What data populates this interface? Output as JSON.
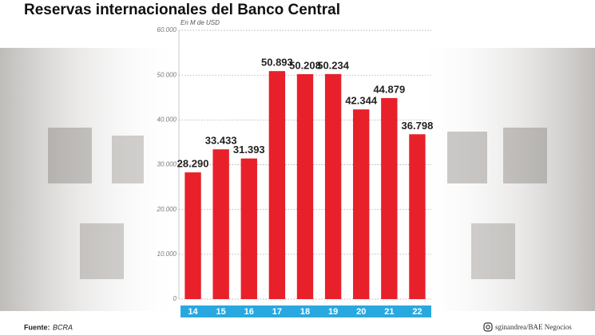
{
  "chart_data": {
    "type": "bar",
    "title": "Reservas internacionales del Banco Central",
    "subtitle": "En M de USD",
    "categories": [
      "14",
      "15",
      "16",
      "17",
      "18",
      "19",
      "20",
      "21",
      "22"
    ],
    "values": [
      28290,
      33433,
      31393,
      50893,
      50208,
      50234,
      42344,
      44879,
      36798
    ],
    "value_labels": [
      "28.290",
      "33.433",
      "31.393",
      "50.893",
      "50.208",
      "50.234",
      "42.344",
      "44.879",
      "36.798"
    ],
    "color": "#e8202a",
    "category_band_color": "#29a8e0",
    "ylim": [
      0,
      60000
    ],
    "yticks": [
      {
        "value": 0,
        "label": "0"
      },
      {
        "value": 10000,
        "label": "10.000"
      },
      {
        "value": 20000,
        "label": "20.000"
      },
      {
        "value": 30000,
        "label": "30.000"
      },
      {
        "value": 40000,
        "label": "40.000"
      },
      {
        "value": 50000,
        "label": "50.000"
      },
      {
        "value": 60000,
        "label": "60.000"
      }
    ],
    "grid": true,
    "source_label": "Fuente:",
    "source": "BCRA",
    "credit": "sginandrea/BAE Negocios"
  }
}
